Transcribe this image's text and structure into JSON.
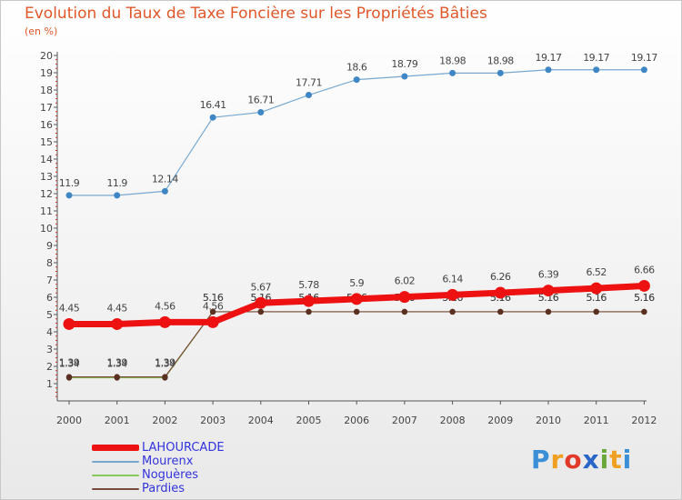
{
  "colors": {
    "title": "#e0572a",
    "axis": "#555555",
    "grid_tick_red": "#d43030",
    "label": "#444444",
    "legend_text": "#3333dd"
  },
  "brand": {
    "text": "Proxiti",
    "letters": [
      {
        "ch": "P",
        "color": "#3a8fd6"
      },
      {
        "ch": "r",
        "color": "#f0a020"
      },
      {
        "ch": "o",
        "color": "#e23a2a"
      },
      {
        "ch": "x",
        "color": "#2a66c8"
      },
      {
        "ch": "i",
        "color": "#6aa83a"
      },
      {
        "ch": "t",
        "color": "#f0a020"
      },
      {
        "ch": "i",
        "color": "#3a8fd6"
      }
    ]
  },
  "chart_data": {
    "type": "line",
    "title": "Evolution du Taux de Taxe Foncière sur les Propriétés Bâties",
    "subtitle": "(en %)",
    "xlabel": "",
    "ylabel": "",
    "ylim": [
      0,
      20
    ],
    "yticks": [
      "1",
      "2",
      "3",
      "4",
      "5",
      "6",
      "7",
      "8",
      "9",
      "10",
      "11",
      "12",
      "13",
      "14",
      "15",
      "16",
      "17",
      "18",
      "19",
      "20"
    ],
    "categories": [
      "2000",
      "2001",
      "2002",
      "2003",
      "2004",
      "2005",
      "2006",
      "2007",
      "2008",
      "2009",
      "2010",
      "2011",
      "2012"
    ],
    "series": [
      {
        "name": "Mourenx",
        "color": "#78a8d0",
        "marker_color": "#3f86c4",
        "line_width": 1.2,
        "marker_radius": 3.5,
        "values": [
          11.9,
          11.9,
          12.14,
          16.41,
          16.71,
          17.71,
          18.6,
          18.79,
          18.98,
          18.98,
          19.17,
          19.17,
          19.17
        ],
        "labels": [
          "11.9",
          "11.9",
          "12.14",
          "16.41",
          "16.71",
          "17.71",
          "18.6",
          "18.79",
          "18.98",
          "18.98",
          "19.17",
          "19.17",
          "19.17"
        ],
        "label_offset": -10
      },
      {
        "name": "Noguères",
        "color": "#86c85a",
        "marker_color": "#5a3a2a",
        "line_width": 1.2,
        "marker_radius": 3.2,
        "values": [
          1.34,
          1.34,
          1.34,
          5.16,
          5.16,
          5.16,
          5.16,
          5.16,
          5.16,
          5.16,
          5.16,
          5.16,
          5.16
        ],
        "labels": [
          "1.34",
          "1.34",
          "1.34",
          "5.16",
          "5.16",
          "5.16",
          "5.16",
          "5.16",
          "5.16",
          "5.16",
          "5.16",
          "5.16",
          "5.16"
        ],
        "label_offset": -12
      },
      {
        "name": "Pardies",
        "color": "#7a4a3a",
        "marker_color": "#5a3020",
        "line_width": 1.2,
        "marker_radius": 3.2,
        "values": [
          1.39,
          1.39,
          1.39,
          5.16,
          5.16,
          5.16,
          5.16,
          5.16,
          5.16,
          5.16,
          5.16,
          5.16,
          5.16
        ],
        "labels": [
          "1.39",
          "1.39",
          "1.39",
          "5.16",
          "5.16",
          "5.16",
          "5.16",
          "5.16",
          "5.16",
          "5.16",
          "5.16",
          "5.16",
          "5.16"
        ],
        "label_offset": -12
      },
      {
        "name": "LAHOURCADE",
        "color": "#ee1111",
        "marker_color": "#ee1111",
        "line_width": 7,
        "marker_radius": 6.5,
        "values": [
          4.45,
          4.45,
          4.56,
          4.56,
          5.67,
          5.78,
          5.9,
          6.02,
          6.14,
          6.26,
          6.39,
          6.52,
          6.66
        ],
        "labels": [
          "4.45",
          "4.45",
          "4.56",
          "4.56",
          "5.67",
          "5.78",
          "5.9",
          "6.02",
          "6.14",
          "6.26",
          "6.39",
          "6.52",
          "6.66"
        ],
        "label_offset": -14
      }
    ],
    "legend": [
      "LAHOURCADE",
      "Mourenx",
      "Noguères",
      "Pardies"
    ],
    "legend_position": "bottom-left"
  }
}
